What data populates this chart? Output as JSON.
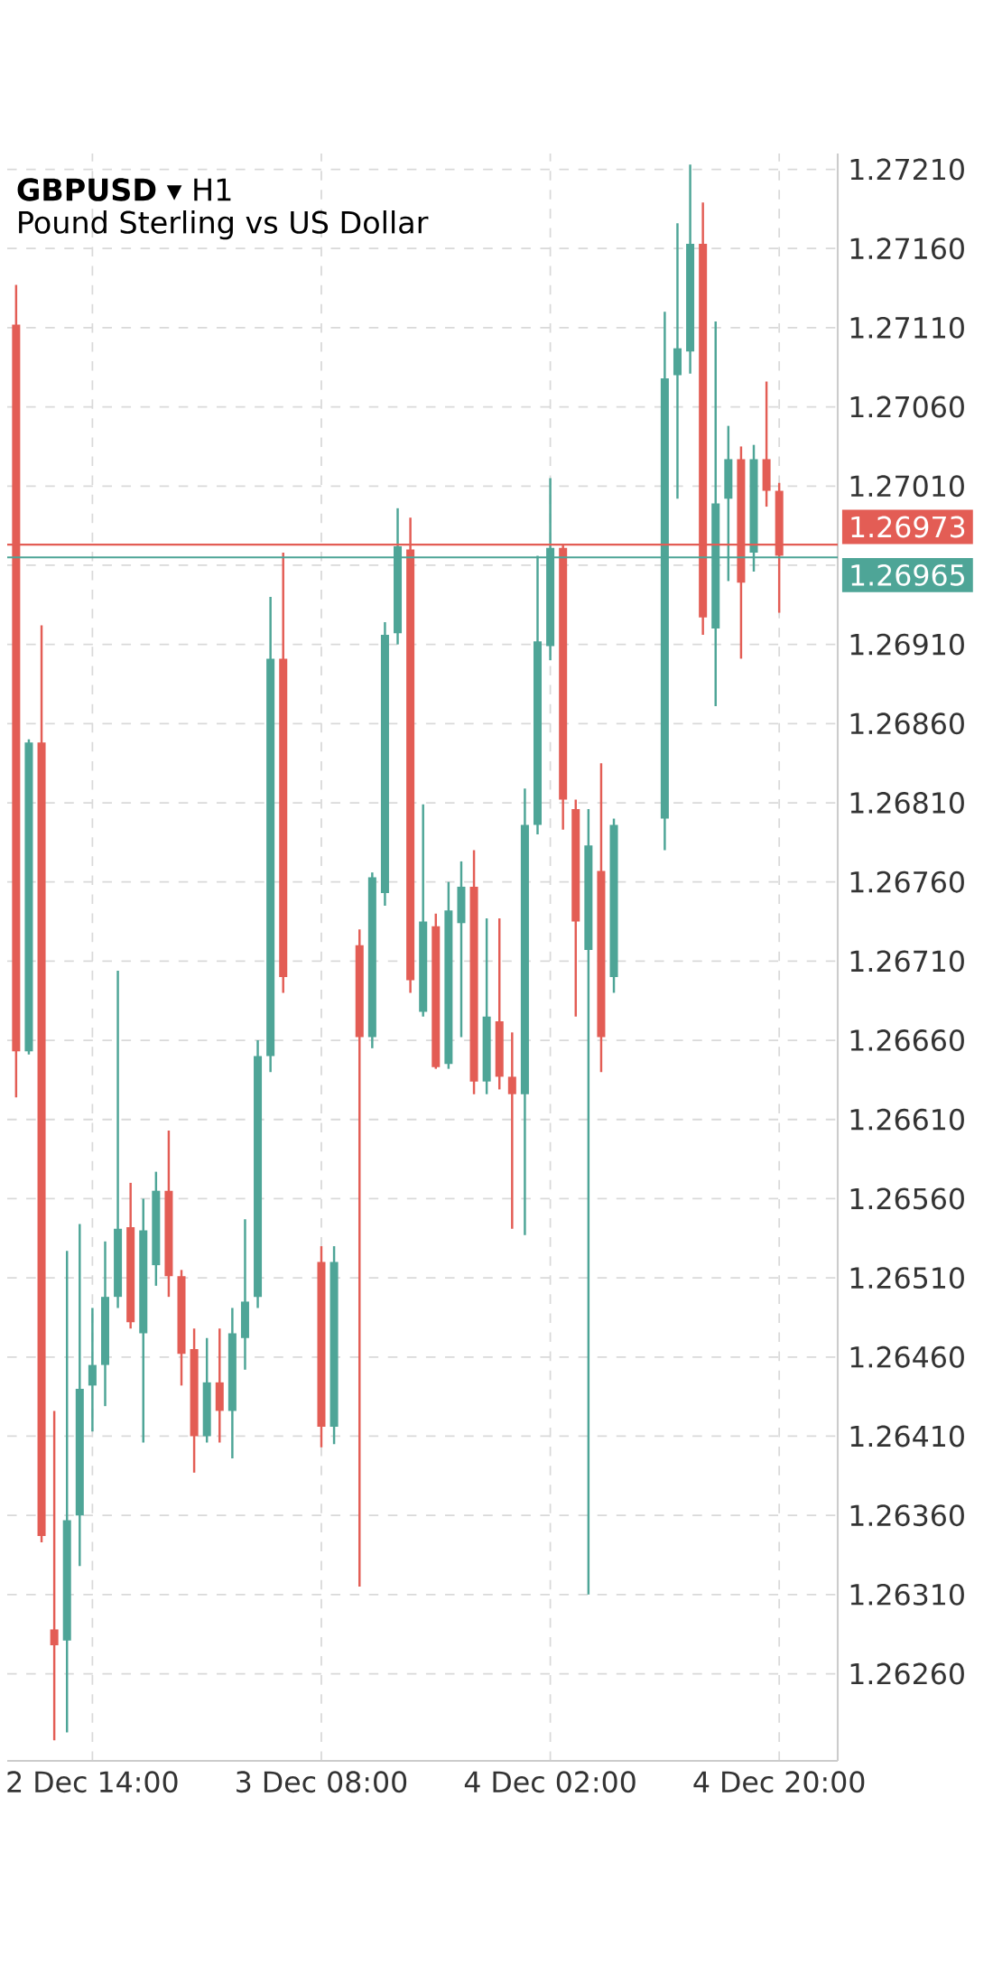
{
  "chart_data": {
    "type": "candlestick",
    "title": "**GBPUSD** ▾ H1",
    "subtitle": "Pound Sterling vs US Dollar",
    "categories": [
      null,
      null,
      null,
      null,
      null,
      null,
      "2 Dec 14:00",
      null,
      null,
      null,
      null,
      null,
      null,
      null,
      null,
      null,
      null,
      null,
      null,
      null,
      null,
      null,
      null,
      null,
      "3 Dec 08:00",
      null,
      null,
      null,
      null,
      null,
      null,
      null,
      null,
      null,
      null,
      null,
      null,
      null,
      null,
      null,
      null,
      null,
      "4 Dec 02:00",
      null,
      null,
      null,
      null,
      null,
      null,
      null,
      null,
      null,
      null,
      null,
      null,
      null,
      null,
      null,
      null,
      null,
      "4 Dec 20:00"
    ],
    "ohlc": [
      [
        1.27112,
        1.27137,
        1.26624,
        1.26653
      ],
      [
        1.26653,
        1.2685,
        1.26651,
        1.26848
      ],
      [
        1.26848,
        1.26922,
        1.26343,
        1.26347
      ],
      [
        1.26288,
        1.26426,
        1.26218,
        1.26278
      ],
      [
        1.26281,
        1.26527,
        1.26223,
        1.26357
      ],
      [
        1.2636,
        1.26544,
        1.26328,
        1.2644
      ],
      [
        1.26442,
        1.26491,
        1.26413,
        1.26455
      ],
      [
        1.26455,
        1.26533,
        1.26429,
        1.26498
      ],
      [
        1.26498,
        1.26704,
        1.26491,
        1.26541
      ],
      [
        1.26542,
        1.2657,
        1.26478,
        1.26482
      ],
      [
        1.26475,
        1.2656,
        1.26406,
        1.2654
      ],
      [
        1.26518,
        1.26577,
        1.26505,
        1.26565
      ],
      [
        1.26565,
        1.26603,
        1.26498,
        1.26511
      ],
      [
        1.26511,
        1.26515,
        1.26442,
        1.26462
      ],
      [
        1.26465,
        1.26478,
        1.26387,
        1.2641
      ],
      [
        1.2641,
        1.26472,
        1.26406,
        1.26444
      ],
      [
        1.26444,
        1.26478,
        1.26406,
        1.26426
      ],
      [
        1.26426,
        1.26491,
        1.26396,
        1.26475
      ],
      [
        1.26472,
        1.26547,
        1.26452,
        1.26495
      ],
      [
        1.26498,
        1.2666,
        1.26491,
        1.2665
      ],
      [
        1.2665,
        1.2694,
        1.2664,
        1.26901
      ],
      [
        1.26901,
        1.26968,
        1.2669,
        1.267
      ],
      null,
      null,
      [
        1.2652,
        1.2653,
        1.26403,
        1.26416
      ],
      [
        1.26416,
        1.2653,
        1.26405,
        1.2652
      ],
      null,
      [
        1.2672,
        1.2673,
        1.26315,
        1.26662
      ],
      [
        1.26662,
        1.26766,
        1.26655,
        1.26763
      ],
      [
        1.26753,
        1.26924,
        1.26745,
        1.26916
      ],
      [
        1.26917,
        1.26996,
        1.2691,
        1.26972
      ],
      [
        1.2697,
        1.2699,
        1.2669,
        1.26698
      ],
      [
        1.26678,
        1.26809,
        1.26675,
        1.26735
      ],
      [
        1.26732,
        1.2674,
        1.26642,
        1.26643
      ],
      [
        1.26645,
        1.2676,
        1.26642,
        1.26742
      ],
      [
        1.26734,
        1.26773,
        1.26662,
        1.26757
      ],
      [
        1.26757,
        1.2678,
        1.26626,
        1.26634
      ],
      [
        1.26634,
        1.26737,
        1.26626,
        1.26675
      ],
      [
        1.26672,
        1.26737,
        1.26629,
        1.26637
      ],
      [
        1.26637,
        1.26665,
        1.26541,
        1.26626
      ],
      [
        1.26626,
        1.26819,
        1.26537,
        1.26796
      ],
      [
        1.26796,
        1.26966,
        1.2679,
        1.26912
      ],
      [
        1.26909,
        1.27015,
        1.269,
        1.26971
      ],
      [
        1.26971,
        1.26973,
        1.26793,
        1.26812
      ],
      [
        1.26806,
        1.26812,
        1.26675,
        1.26735
      ],
      [
        1.26717,
        1.26806,
        1.2631,
        1.26783
      ],
      [
        1.26767,
        1.26835,
        1.2664,
        1.26662
      ],
      [
        1.267,
        1.268,
        1.2669,
        1.26796
      ],
      null,
      null,
      null,
      [
        1.268,
        1.2712,
        1.2678,
        1.27078
      ],
      [
        1.2708,
        1.27176,
        1.27002,
        1.27097
      ],
      [
        1.27095,
        1.27213,
        1.27081,
        1.27163
      ],
      [
        1.27163,
        1.27189,
        1.26916,
        1.26927
      ],
      [
        1.2692,
        1.27114,
        1.26871,
        1.26999
      ],
      [
        1.27002,
        1.27048,
        1.2695,
        1.27027
      ],
      [
        1.27027,
        1.27035,
        1.26901,
        1.26949
      ],
      [
        1.26968,
        1.27036,
        1.26956,
        1.27027
      ],
      [
        1.27027,
        1.27076,
        1.26997,
        1.27007
      ],
      [
        1.27007,
        1.27012,
        1.2693,
        1.26966
      ]
    ],
    "colors": [
      "#e35d55",
      "#4ea597",
      "#e35d55",
      "#e35d55",
      "#4ea597",
      "#4ea597",
      "#4ea597",
      "#4ea597",
      "#4ea597",
      "#e35d55",
      "#4ea597",
      "#4ea597",
      "#e35d55",
      "#e35d55",
      "#e35d55",
      "#4ea597",
      "#e35d55",
      "#4ea597",
      "#4ea597",
      "#4ea597",
      "#4ea597",
      "#e35d55",
      null,
      null,
      "#e35d55",
      "#4ea597",
      null,
      "#e35d55",
      "#4ea597",
      "#4ea597",
      "#4ea597",
      "#e35d55",
      "#4ea597",
      "#e35d55",
      "#4ea597",
      "#4ea597",
      "#e35d55",
      "#4ea597",
      "#e35d55",
      "#e35d55",
      "#4ea597",
      "#4ea597",
      "#4ea597",
      "#e35d55",
      "#e35d55",
      "#4ea597",
      "#e35d55",
      "#4ea597",
      null,
      null,
      null,
      "#4ea597",
      "#4ea597",
      "#4ea597",
      "#e35d55",
      "#4ea597",
      "#4ea597",
      "#e35d55",
      "#4ea597",
      "#e35d55",
      "#e35d55"
    ],
    "ylim": [
      1.26205,
      1.2722
    ],
    "yticks": [
      {
        "value": 1.2626,
        "label": "1.26260"
      },
      {
        "value": 1.2631,
        "label": "1.26310"
      },
      {
        "value": 1.2636,
        "label": "1.26360"
      },
      {
        "value": 1.2641,
        "label": "1.26410"
      },
      {
        "value": 1.2646,
        "label": "1.26460"
      },
      {
        "value": 1.2651,
        "label": "1.26510"
      },
      {
        "value": 1.2656,
        "label": "1.26560"
      },
      {
        "value": 1.2661,
        "label": "1.26610"
      },
      {
        "value": 1.2666,
        "label": "1.26660"
      },
      {
        "value": 1.2671,
        "label": "1.26710"
      },
      {
        "value": 1.2676,
        "label": "1.26760"
      },
      {
        "value": 1.2681,
        "label": "1.26810"
      },
      {
        "value": 1.2686,
        "label": "1.26860"
      },
      {
        "value": 1.2691,
        "label": "1.26910"
      },
      {
        "value": 1.2696,
        "label": null
      },
      {
        "value": 1.2701,
        "label": "1.27010"
      },
      {
        "value": 1.2706,
        "label": "1.27060"
      },
      {
        "value": 1.2711,
        "label": "1.27110"
      },
      {
        "value": 1.2716,
        "label": "1.27160"
      },
      {
        "value": 1.2721,
        "label": "1.27210"
      }
    ],
    "grid": true,
    "ref_lines": [
      {
        "axis": "y",
        "value": 1.26973,
        "label": "1.26973",
        "color": "#e35d55"
      },
      {
        "axis": "y",
        "value": 1.26965,
        "label": "1.26965",
        "color": "#4ea597"
      }
    ]
  }
}
